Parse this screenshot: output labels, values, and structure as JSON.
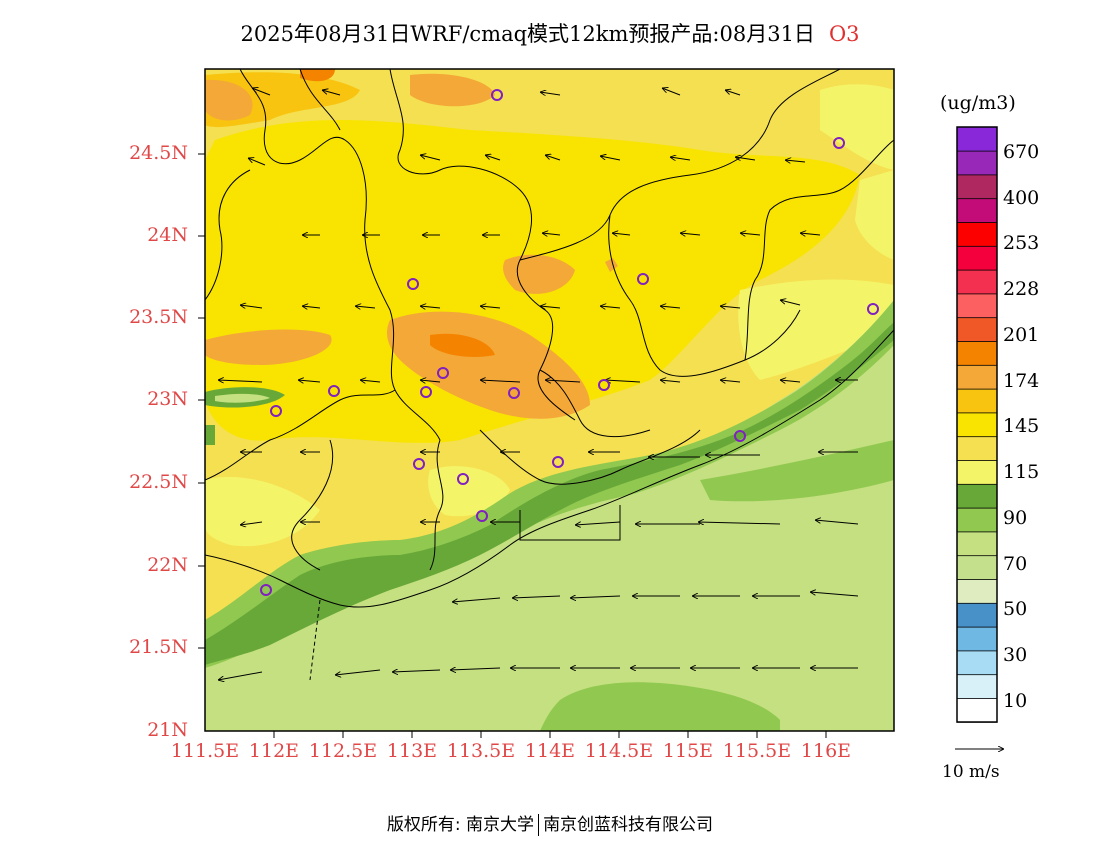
{
  "title": "2025年08月31日WRF/cmaq模式12km预报产品:08月31日",
  "species": "O3",
  "lat_labels": [
    "24.5N",
    "24N",
    "23.5N",
    "23N",
    "22.5N",
    "22N",
    "21.5N",
    "21N"
  ],
  "lon_labels": [
    "111.5E",
    "112E",
    "112.5E",
    "113E",
    "113.5E",
    "114E",
    "114.5E",
    "115E",
    "115.5E",
    "116E"
  ],
  "colorbar": {
    "unit": "(ug/m3)",
    "labels": [
      "670",
      "400",
      "253",
      "228",
      "201",
      "174",
      "145",
      "115",
      "90",
      "70",
      "50",
      "30",
      "10"
    ],
    "colors": [
      "#ffffff",
      "#d8f0f8",
      "#a8dcf4",
      "#70b8e4",
      "#4890c8",
      "#deecc0",
      "#c4e08c",
      "#c4e080",
      "#90c850",
      "#68a838",
      "#f4f468",
      "#f4e050",
      "#f8e400",
      "#f8c410",
      "#f4a838",
      "#f48400",
      "#f05828",
      "#fc6060",
      "#f43050",
      "#f4003c",
      "#fc0000",
      "#c40c78",
      "#b02860",
      "#9828b8",
      "#8828d8"
    ]
  },
  "wind_reference": "10 m/s",
  "footer": {
    "left": "版权所有: 南京大学",
    "right": "南京创蓝科技有限公司"
  }
}
